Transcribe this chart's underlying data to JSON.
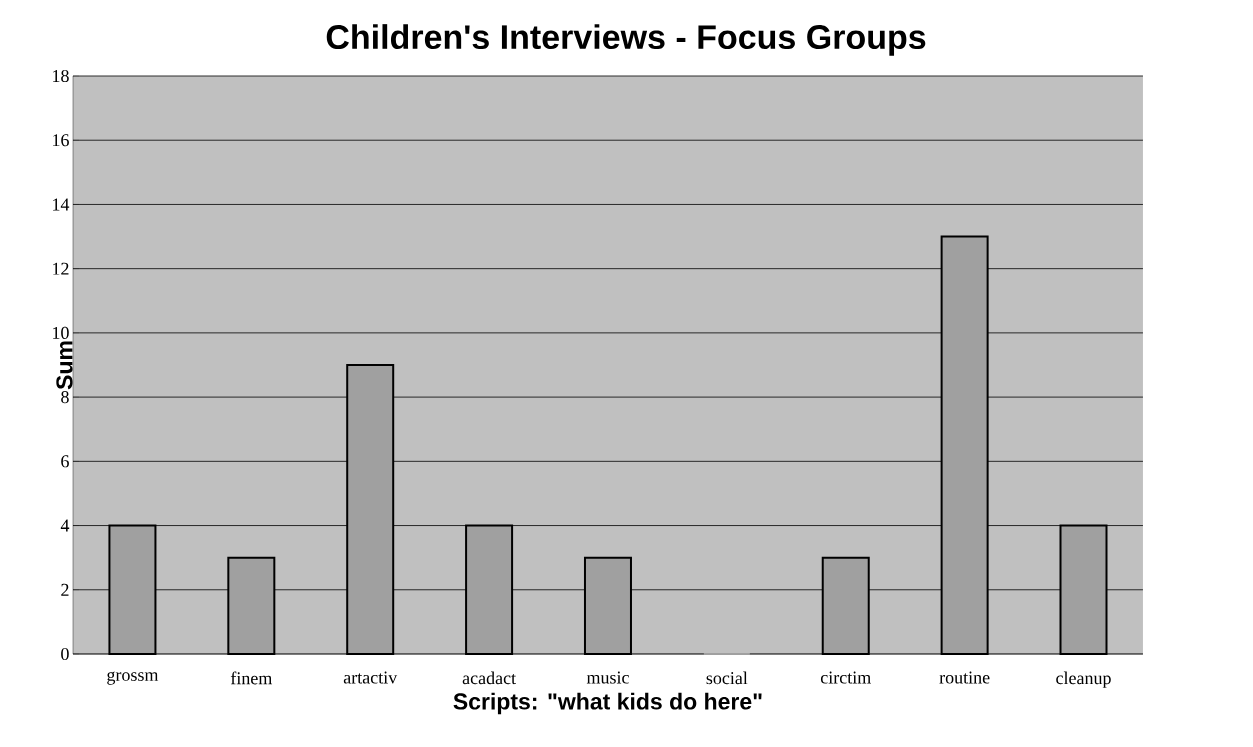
{
  "chart_data": {
    "type": "bar",
    "title": "Children's Interviews - Focus Groups",
    "xlabel": "Scripts: \"what kids do here\"",
    "ylabel": "Sum",
    "categories": [
      "grossm",
      "finem",
      "artactiv",
      "acadact",
      "music",
      "social",
      "circtim",
      "routine",
      "cleanup"
    ],
    "values": [
      4,
      3,
      9,
      4,
      3,
      0,
      3,
      13,
      4
    ],
    "color": "#a0a0a0",
    "ylim": [
      0,
      18
    ],
    "yticks": [
      0,
      2,
      4,
      6,
      8,
      10,
      12,
      14,
      16,
      18
    ],
    "grid": "y"
  }
}
